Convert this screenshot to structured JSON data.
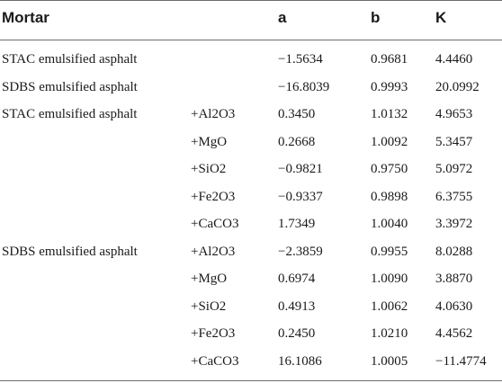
{
  "headers": {
    "mortar": "Mortar",
    "a": "a",
    "b": "b",
    "k": "K"
  },
  "rows": [
    {
      "mortar": "STAC emulsified asphalt",
      "additive": "",
      "a": "−1.5634",
      "b": "0.9681",
      "k": "4.4460"
    },
    {
      "mortar": "SDBS emulsified asphalt",
      "additive": "",
      "a": "−16.8039",
      "b": "0.9993",
      "k": "20.0992"
    },
    {
      "mortar": "STAC emulsified asphalt",
      "additive": "+Al2O3",
      "a": "0.3450",
      "b": "1.0132",
      "k": "4.9653"
    },
    {
      "mortar": "",
      "additive": "+MgO",
      "a": "0.2668",
      "b": "1.0092",
      "k": "5.3457"
    },
    {
      "mortar": "",
      "additive": "+SiO2",
      "a": "−0.9821",
      "b": "0.9750",
      "k": "5.0972"
    },
    {
      "mortar": "",
      "additive": "+Fe2O3",
      "a": "−0.9337",
      "b": "0.9898",
      "k": "6.3755"
    },
    {
      "mortar": "",
      "additive": "+CaCO3",
      "a": "1.7349",
      "b": "1.0040",
      "k": "3.3972"
    },
    {
      "mortar": "SDBS emulsified asphalt",
      "additive": "+Al2O3",
      "a": "−2.3859",
      "b": "0.9955",
      "k": "8.0288"
    },
    {
      "mortar": "",
      "additive": "+MgO",
      "a": "0.6974",
      "b": "1.0090",
      "k": "3.8870"
    },
    {
      "mortar": "",
      "additive": "+SiO2",
      "a": "0.4913",
      "b": "1.0062",
      "k": "4.0630"
    },
    {
      "mortar": "",
      "additive": "+Fe2O3",
      "a": "0.2450",
      "b": "1.0210",
      "k": "4.4562"
    },
    {
      "mortar": "",
      "additive": "+CaCO3",
      "a": "16.1086",
      "b": "1.0005",
      "k": "−11.4774"
    }
  ]
}
